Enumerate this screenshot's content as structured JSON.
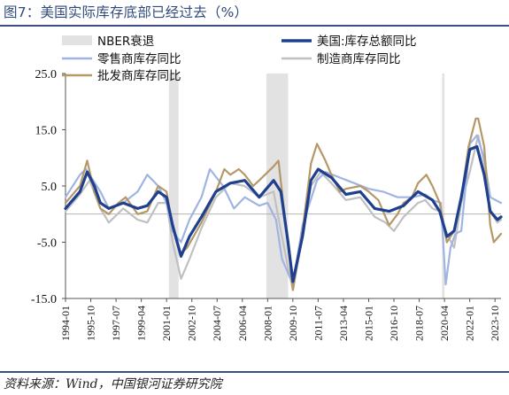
{
  "title": "图7：美国实际库存底部已经过去（%）",
  "source": "资料来源：Wind，中国银河证券研究院",
  "chart_data": {
    "type": "line",
    "title": "图7：美国实际库存底部已经过去（%）",
    "xlabel": "",
    "ylabel": "",
    "ylim": [
      -15,
      25
    ],
    "yticks": [
      "25.0",
      "15.0",
      "5.0",
      "-5.0",
      "-15.0"
    ],
    "xlim": [
      "1994-01",
      "2024-03"
    ],
    "xticks": [
      "1994-01",
      "1995-10",
      "1997-07",
      "1999-04",
      "2001-01",
      "2002-10",
      "2004-07",
      "2006-04",
      "2008-01",
      "2009-10",
      "2011-07",
      "2013-04",
      "2015-01",
      "2016-10",
      "2018-07",
      "2020-04",
      "2022-01",
      "2023-10"
    ],
    "grid": false,
    "legend_position": "top",
    "colors": {
      "total": "#1f3f8f",
      "retail": "#9fb4e2",
      "mfg": "#c0c0c0",
      "wholesale": "#b59868",
      "recession": "#e2e2e2"
    },
    "recessions": [
      {
        "name": "NBER衰退",
        "start": "2001-03",
        "end": "2001-11"
      },
      {
        "name": "NBER衰退",
        "start": "2007-12",
        "end": "2009-06"
      },
      {
        "name": "NBER衰退",
        "start": "2020-02",
        "end": "2020-04"
      }
    ],
    "legend": [
      {
        "key": "recession",
        "label": "NBER衰退"
      },
      {
        "key": "total",
        "label": "美国:库存总额同比"
      },
      {
        "key": "retail",
        "label": "零售商库存同比"
      },
      {
        "key": "mfg",
        "label": "制造商库存同比"
      },
      {
        "key": "wholesale",
        "label": "批发商库存同比"
      }
    ],
    "series": [
      {
        "key": "mfg",
        "name": "制造商库存同比",
        "x": [
          "1994-01",
          "1995-01",
          "1995-09",
          "1996-06",
          "1997-01",
          "1998-01",
          "1999-01",
          "1999-09",
          "2000-06",
          "2001-01",
          "2001-06",
          "2002-01",
          "2002-08",
          "2003-06",
          "2004-06",
          "2005-06",
          "2006-06",
          "2007-06",
          "2008-06",
          "2008-12",
          "2009-06",
          "2009-10",
          "2010-06",
          "2011-01",
          "2011-09",
          "2012-06",
          "2013-06",
          "2014-06",
          "2015-06",
          "2016-03",
          "2016-10",
          "2017-06",
          "2018-06",
          "2018-12",
          "2019-06",
          "2019-12",
          "2020-06",
          "2020-12",
          "2021-06",
          "2022-01",
          "2022-08",
          "2023-01",
          "2023-06",
          "2023-12",
          "2024-03"
        ],
        "values": [
          0.5,
          3.5,
          6.0,
          1.0,
          -1.5,
          1.0,
          -1.0,
          -1.5,
          2.0,
          2.0,
          -5.0,
          -11.5,
          -8.0,
          -2.5,
          3.0,
          5.5,
          5.0,
          3.0,
          4.0,
          -3.0,
          -9.5,
          -13.5,
          -4.0,
          5.0,
          7.5,
          5.5,
          2.5,
          3.0,
          -0.5,
          -1.5,
          -3.0,
          -0.5,
          2.0,
          2.5,
          1.0,
          0.5,
          -3.5,
          -6.0,
          2.0,
          7.5,
          14.0,
          9.0,
          0.5,
          -1.5,
          -1.0
        ]
      },
      {
        "key": "retail",
        "name": "零售商库存同比",
        "x": [
          "1994-01",
          "1995-01",
          "1995-06",
          "1996-06",
          "1997-01",
          "1998-01",
          "1999-01",
          "1999-09",
          "2000-06",
          "2001-01",
          "2001-06",
          "2002-01",
          "2002-08",
          "2003-06",
          "2004-01",
          "2004-12",
          "2005-09",
          "2006-06",
          "2007-06",
          "2008-01",
          "2008-08",
          "2009-01",
          "2009-10",
          "2010-06",
          "2011-06",
          "2012-01",
          "2013-01",
          "2014-01",
          "2015-01",
          "2016-01",
          "2017-01",
          "2018-01",
          "2018-12",
          "2019-06",
          "2020-01",
          "2020-05",
          "2020-09",
          "2021-01",
          "2021-06",
          "2022-01",
          "2022-07",
          "2023-01",
          "2023-06",
          "2024-03"
        ],
        "values": [
          3.0,
          7.0,
          8.0,
          4.0,
          1.0,
          2.0,
          4.0,
          7.0,
          5.0,
          2.0,
          -3.0,
          -5.0,
          -1.0,
          3.0,
          8.0,
          5.0,
          1.0,
          3.0,
          1.5,
          2.0,
          -1.0,
          -8.0,
          -12.5,
          -2.0,
          6.0,
          7.5,
          6.5,
          5.5,
          4.5,
          4.0,
          3.0,
          3.0,
          3.5,
          2.5,
          2.0,
          -12.5,
          -6.0,
          -3.5,
          -3.0,
          12.5,
          14.0,
          10.0,
          3.0,
          2.0
        ]
      },
      {
        "key": "wholesale",
        "name": "批发商库存同比",
        "x": [
          "1994-01",
          "1995-01",
          "1995-07",
          "1996-01",
          "1996-06",
          "1997-01",
          "1997-09",
          "1998-03",
          "1999-01",
          "1999-09",
          "2000-06",
          "2001-01",
          "2001-06",
          "2002-01",
          "2002-06",
          "2003-06",
          "2004-06",
          "2005-01",
          "2005-06",
          "2006-01",
          "2006-06",
          "2007-01",
          "2007-06",
          "2008-06",
          "2008-10",
          "2009-03",
          "2009-10",
          "2010-06",
          "2011-01",
          "2011-06",
          "2012-01",
          "2012-06",
          "2013-01",
          "2013-06",
          "2014-06",
          "2015-01",
          "2015-09",
          "2016-06",
          "2017-01",
          "2017-06",
          "2018-01",
          "2018-06",
          "2019-01",
          "2019-06",
          "2019-12",
          "2020-06",
          "2020-12",
          "2021-06",
          "2021-12",
          "2022-06",
          "2022-08",
          "2023-01",
          "2023-06",
          "2023-09",
          "2024-01",
          "2024-03"
        ],
        "values": [
          2.0,
          5.0,
          9.5,
          4.0,
          1.0,
          0.0,
          2.0,
          3.0,
          0.0,
          0.5,
          5.0,
          4.0,
          -2.5,
          -7.0,
          -6.0,
          -1.5,
          4.0,
          8.0,
          7.0,
          8.0,
          7.0,
          5.0,
          6.0,
          8.5,
          9.5,
          0.0,
          -13.5,
          -3.0,
          9.0,
          12.5,
          9.5,
          7.0,
          4.0,
          4.5,
          5.0,
          4.0,
          2.5,
          -2.0,
          0.0,
          2.0,
          3.0,
          5.5,
          7.0,
          5.0,
          2.0,
          -5.0,
          -3.0,
          3.0,
          12.0,
          17.0,
          17.0,
          12.0,
          -2.0,
          -5.0,
          -4.0,
          -3.5
        ]
      },
      {
        "key": "total",
        "name": "美国:库存总额同比",
        "x": [
          "1994-01",
          "1995-01",
          "1995-07",
          "1996-01",
          "1996-06",
          "1997-01",
          "1998-01",
          "1999-01",
          "1999-09",
          "2000-06",
          "2001-01",
          "2001-06",
          "2002-01",
          "2002-08",
          "2003-06",
          "2004-06",
          "2005-06",
          "2006-06",
          "2007-06",
          "2008-06",
          "2008-12",
          "2009-06",
          "2009-10",
          "2010-06",
          "2011-01",
          "2011-07",
          "2012-06",
          "2013-06",
          "2014-06",
          "2015-06",
          "2016-06",
          "2017-06",
          "2018-06",
          "2019-06",
          "2019-12",
          "2020-06",
          "2020-12",
          "2021-06",
          "2022-01",
          "2022-07",
          "2023-01",
          "2023-06",
          "2023-12",
          "2024-03"
        ],
        "values": [
          1.0,
          4.0,
          7.5,
          5.0,
          2.0,
          1.0,
          2.0,
          1.0,
          1.5,
          4.0,
          3.0,
          -2.0,
          -7.5,
          -4.0,
          -0.5,
          4.0,
          5.5,
          6.0,
          3.0,
          6.0,
          4.0,
          -5.0,
          -12.0,
          -4.0,
          6.0,
          8.0,
          6.5,
          3.5,
          4.0,
          1.0,
          0.5,
          1.5,
          4.0,
          2.5,
          0.5,
          -4.0,
          -3.0,
          3.0,
          11.5,
          12.0,
          7.0,
          0.5,
          -1.0,
          -0.5
        ]
      }
    ]
  }
}
